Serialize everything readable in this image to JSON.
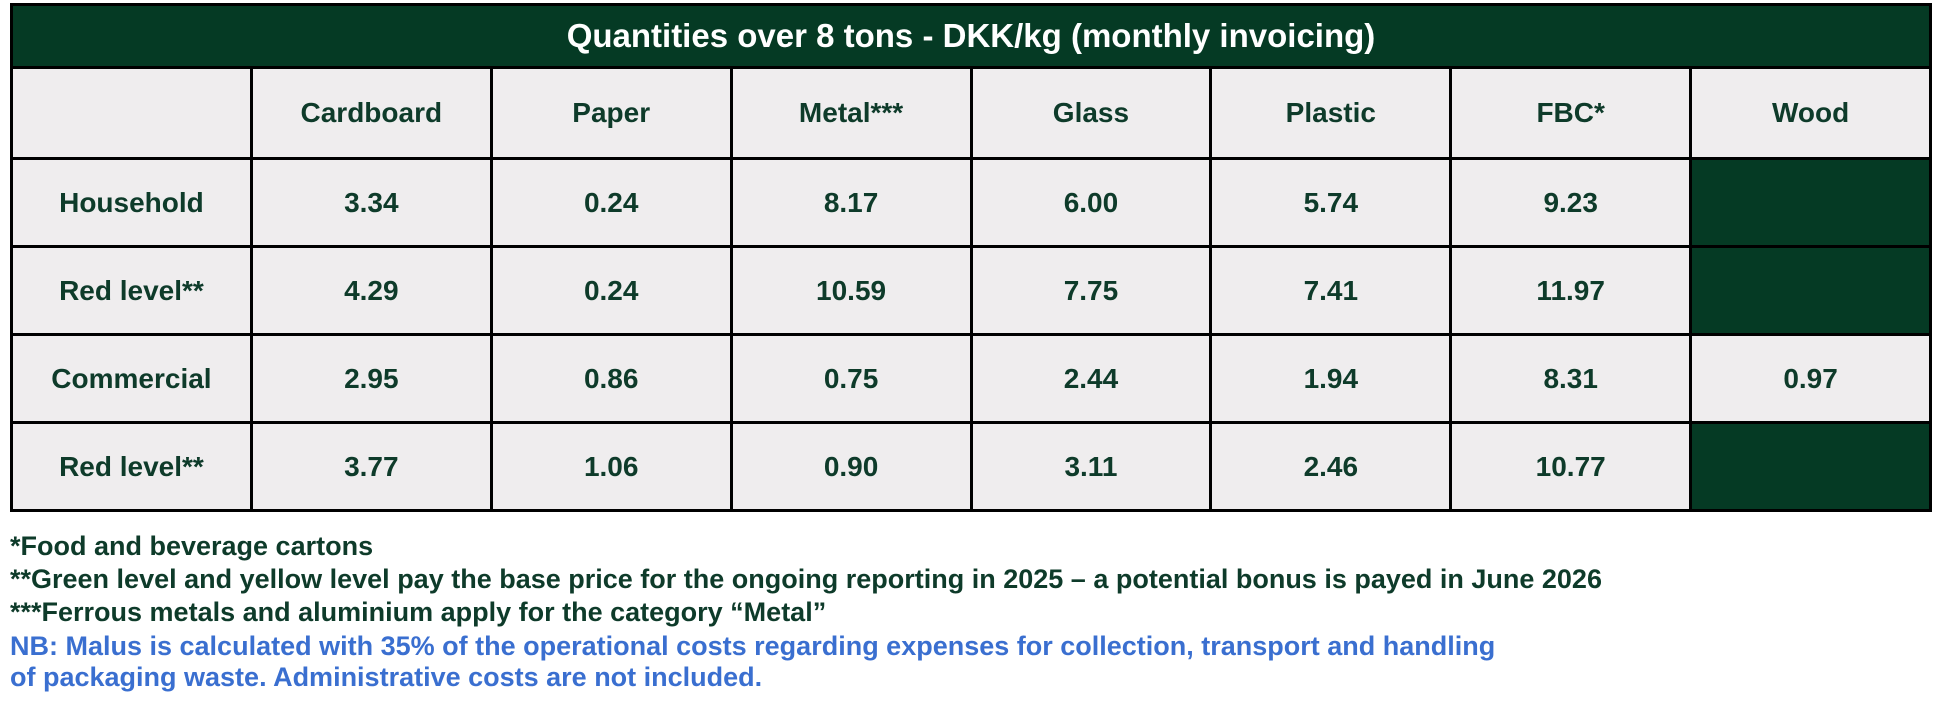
{
  "title": "Quantities over 8 tons - DKK/kg (monthly invoicing)",
  "columns": [
    "",
    "Cardboard",
    "Paper",
    "Metal***",
    "Glass",
    "Plastic",
    "FBC*",
    "Wood"
  ],
  "rows": [
    {
      "label": "Household",
      "values": [
        "3.34",
        "0.24",
        "8.17",
        "6.00",
        "5.74",
        "9.23",
        ""
      ],
      "wood_blocked": true
    },
    {
      "label": "Red level**",
      "values": [
        "4.29",
        "0.24",
        "10.59",
        "7.75",
        "7.41",
        "11.97",
        ""
      ],
      "wood_blocked": true
    },
    {
      "label": "Commercial",
      "values": [
        "2.95",
        "0.86",
        "0.75",
        "2.44",
        "1.94",
        "8.31",
        "0.97"
      ],
      "wood_blocked": false
    },
    {
      "label": "Red level**",
      "values": [
        "3.77",
        "1.06",
        "0.90",
        "3.11",
        "2.46",
        "10.77",
        ""
      ],
      "wood_blocked": true
    }
  ],
  "footnotes": [
    "*Food and beverage cartons",
    "**Green level and yellow level pay the base price for the ongoing reporting in 2025 – a potential bonus is payed in June 2026",
    "***Ferrous metals and aluminium apply for the category “Metal”"
  ],
  "nb_lines": [
    "NB: Malus is calculated with 35% of the operational costs regarding expenses for collection, transport and handling",
    "of packaging waste. Administrative costs are not included."
  ],
  "colors": {
    "dark_green": "#053a24",
    "cell_bg": "#efedee",
    "text": "#0e3b2a",
    "nb_blue": "#3a6fd0"
  }
}
